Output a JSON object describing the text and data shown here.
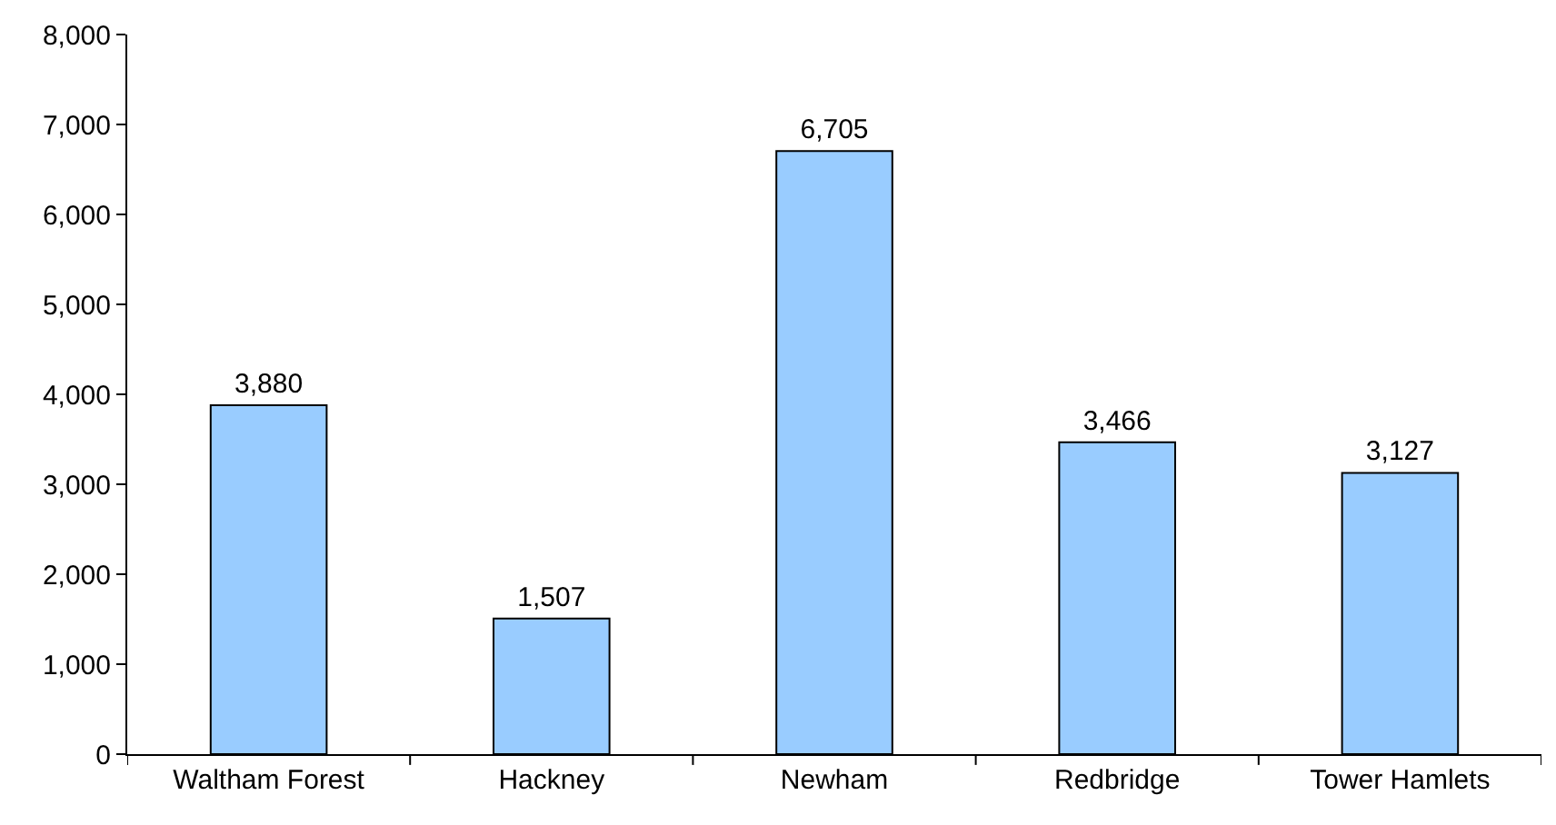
{
  "chart_data": {
    "type": "bar",
    "categories": [
      "Waltham Forest",
      "Hackney",
      "Newham",
      "Redbridge",
      "Tower Hamlets"
    ],
    "values": [
      3880,
      1507,
      6705,
      3466,
      3127
    ],
    "color": "#99ccff",
    "ylim": [
      0,
      8000
    ],
    "yticks": [
      0,
      {
        "value": 1000,
        "label": "1,000"
      },
      {
        "value": 2000,
        "label": "2,000"
      },
      {
        "value": 3000,
        "label": "3,000"
      },
      {
        "value": 4000,
        "label": "4,000"
      },
      {
        "value": 5000,
        "label": "5,000"
      },
      {
        "value": 6000,
        "label": "6,000"
      },
      {
        "value": 7000,
        "label": "7,000"
      },
      {
        "value": 8000,
        "label": "8,000"
      }
    ],
    "value_labels": [
      "3,880",
      "1,507",
      "6,705",
      "3,466",
      "3,127"
    ]
  }
}
